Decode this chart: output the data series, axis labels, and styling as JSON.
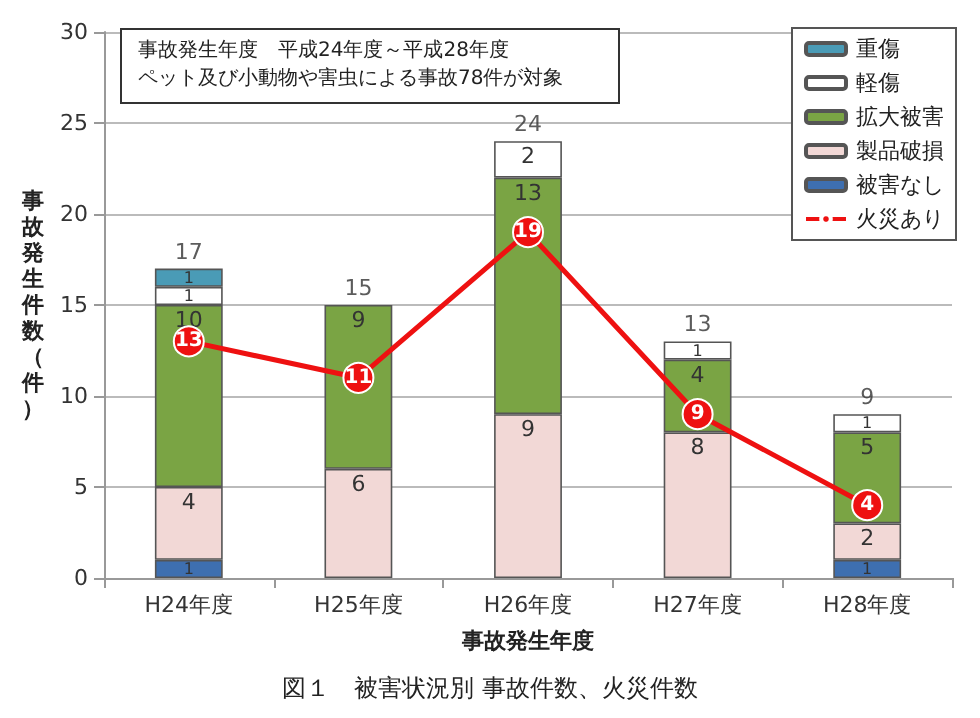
{
  "chart_data": {
    "type": "bar",
    "stacked": true,
    "title": "図１　被害状況別 事故件数、火災件数",
    "xlabel": "事故発生年度",
    "ylabel": "事故発生件数（件）",
    "categories": [
      "H24年度",
      "H25年度",
      "H26年度",
      "H27年度",
      "H28年度"
    ],
    "series": [
      {
        "name": "被害なし",
        "color": "#3e6fb0",
        "values": [
          1,
          null,
          null,
          null,
          1
        ]
      },
      {
        "name": "製品破損",
        "color": "#f2d8d6",
        "values": [
          4,
          6,
          9,
          8,
          2
        ]
      },
      {
        "name": "拡大被害",
        "color": "#7aa444",
        "values": [
          10,
          9,
          13,
          4,
          5
        ]
      },
      {
        "name": "軽傷",
        "color": "#ffffff",
        "values": [
          1,
          null,
          2,
          1,
          1
        ]
      },
      {
        "name": "重傷",
        "color": "#4a9bb6",
        "values": [
          1,
          null,
          null,
          null,
          null
        ]
      },
      {
        "name": "火災あり",
        "type": "line",
        "color": "#ee1111",
        "marker": "circle",
        "values": [
          13,
          11,
          19,
          9,
          4
        ]
      }
    ],
    "totals": [
      "17",
      "15",
      "24",
      "13",
      "9"
    ],
    "data_labels": true,
    "ylim": [
      0,
      30
    ],
    "yticks": [
      0,
      5,
      10,
      15,
      20,
      25,
      30
    ],
    "grid": "y",
    "legend": "top right",
    "annotations": [
      "事故発生年度　平成24年度～平成28年度",
      "ペット及び小動物や害虫による事故78件が対象"
    ]
  }
}
